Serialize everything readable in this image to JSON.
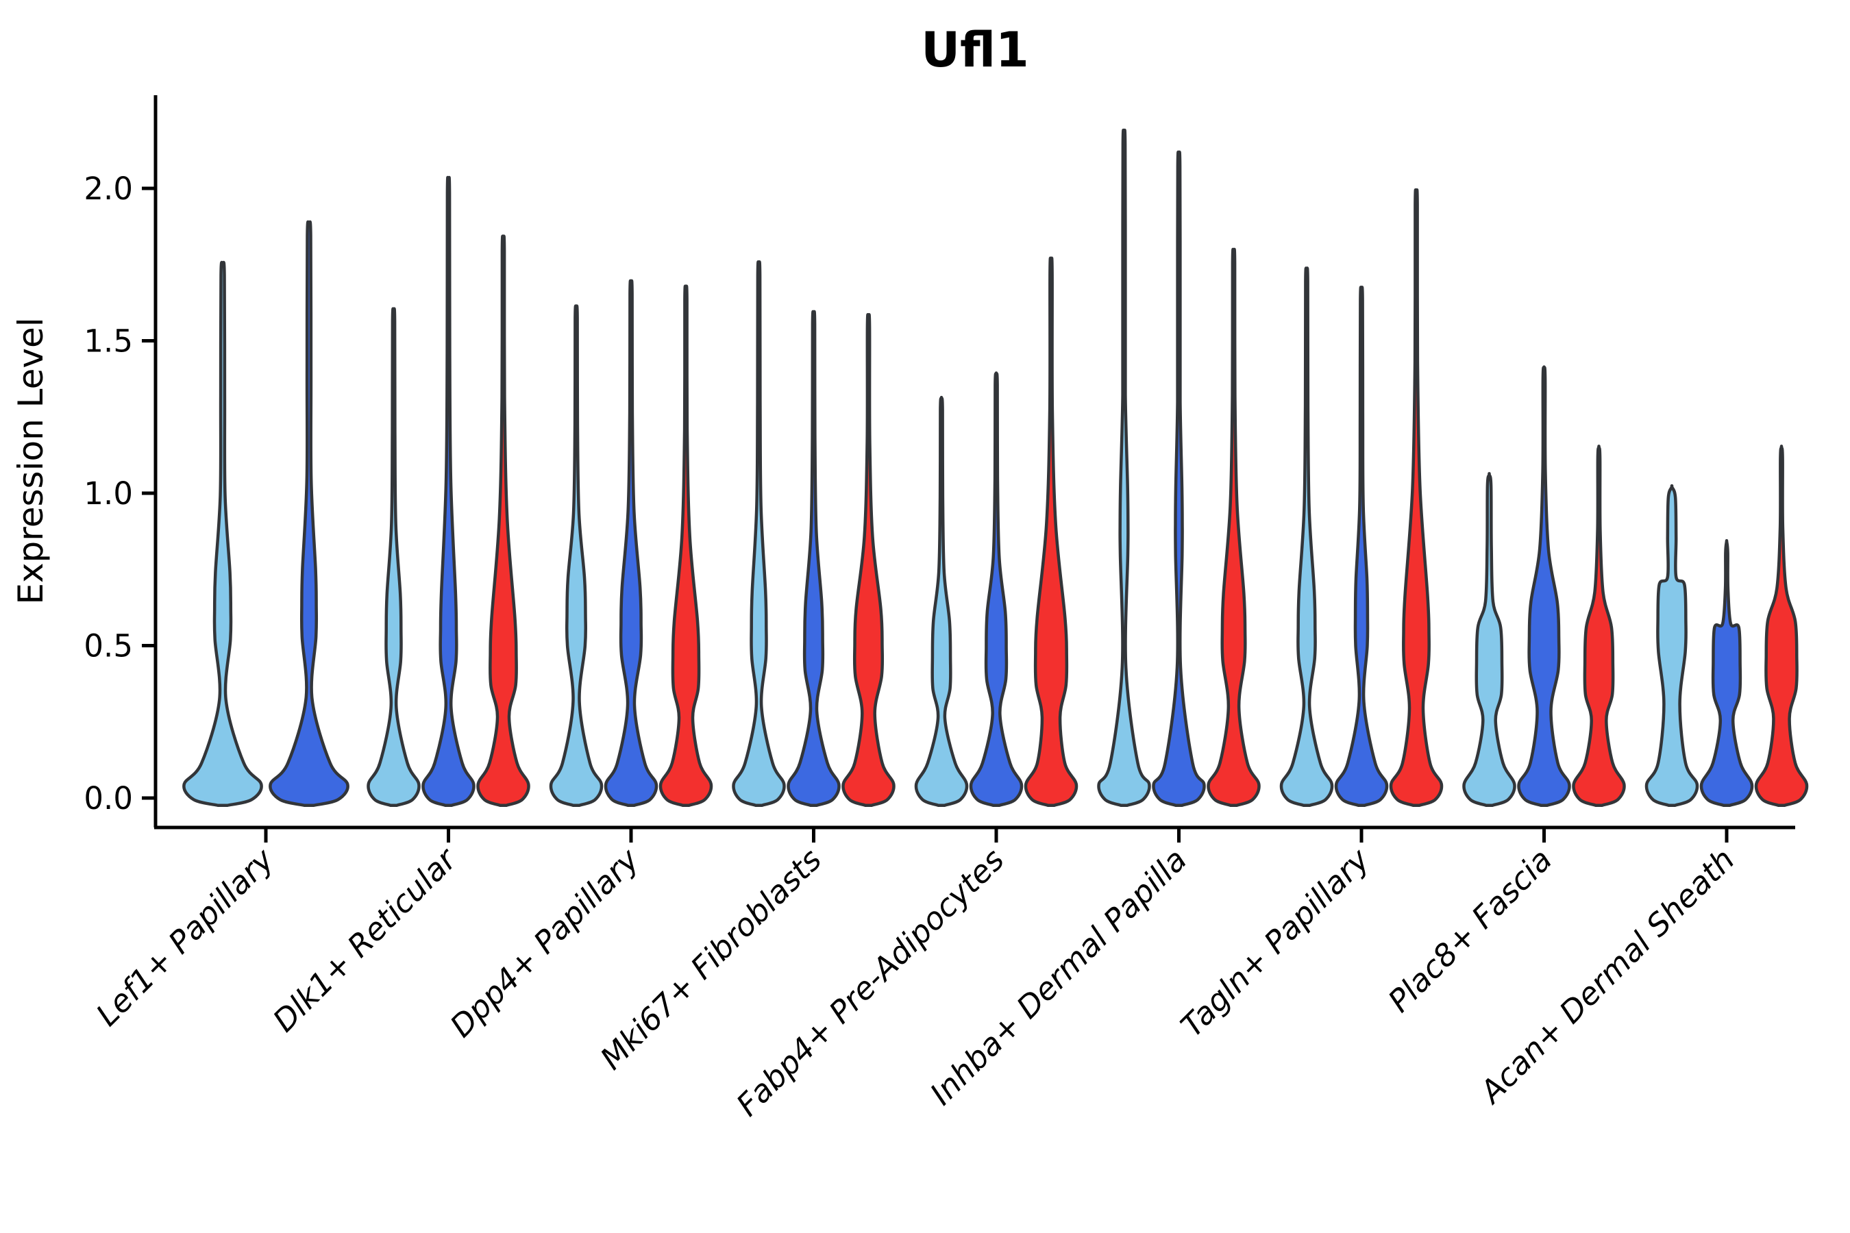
{
  "chart_data": {
    "type": "violin",
    "title": "Ufl1",
    "ylabel": "Expression Level",
    "xlabel": "",
    "grid": false,
    "legend_position": "none",
    "y_ticks": [
      "0.0",
      "0.5",
      "1.0",
      "1.5",
      "2.0"
    ],
    "y_tick_values": [
      0.0,
      0.5,
      1.0,
      1.5,
      2.0
    ],
    "ylim": [
      -0.1,
      2.31
    ],
    "palette": {
      "light_blue": "#85C8EA",
      "royal_blue": "#3C69E1",
      "red": "#F3302E",
      "outline": "#323539",
      "axis": "#000000"
    },
    "split_order": [
      "light_blue",
      "royal_blue",
      "red"
    ],
    "categories": [
      {
        "label": "Lef1+ Papillary",
        "violins": [
          {
            "color": "light_blue",
            "max": 1.75,
            "bulge_v": 0.62,
            "bulge_w": 0.2,
            "waist_w": 0.08
          },
          {
            "color": "royal_blue",
            "max": 1.88,
            "bulge_v": 0.63,
            "bulge_w": 0.18,
            "waist_w": 0.075
          }
        ]
      },
      {
        "label": "Dlk1+ Reticular",
        "violins": [
          {
            "color": "light_blue",
            "max": 1.6,
            "bulge_v": 0.55,
            "bulge_w": 0.28,
            "waist_w": 0.1
          },
          {
            "color": "royal_blue",
            "max": 2.02,
            "bulge_v": 0.55,
            "bulge_w": 0.3,
            "waist_w": 0.1
          },
          {
            "color": "red",
            "max": 1.83,
            "bulge_v": 0.47,
            "bulge_w": 0.49,
            "waist_w": 0.22
          }
        ]
      },
      {
        "label": "Dpp4+ Papillary",
        "violins": [
          {
            "color": "light_blue",
            "max": 1.61,
            "bulge_v": 0.6,
            "bulge_w": 0.35,
            "waist_w": 0.12
          },
          {
            "color": "royal_blue",
            "max": 1.69,
            "bulge_v": 0.57,
            "bulge_w": 0.38,
            "waist_w": 0.13
          },
          {
            "color": "red",
            "max": 1.67,
            "bulge_v": 0.46,
            "bulge_w": 0.49,
            "waist_w": 0.26
          }
        ]
      },
      {
        "label": "Mki67+ Fibroblasts",
        "violins": [
          {
            "color": "light_blue",
            "max": 1.75,
            "bulge_v": 0.56,
            "bulge_w": 0.28,
            "waist_w": 0.1
          },
          {
            "color": "royal_blue",
            "max": 1.59,
            "bulge_v": 0.52,
            "bulge_w": 0.34,
            "waist_w": 0.12
          },
          {
            "color": "red",
            "max": 1.58,
            "bulge_v": 0.5,
            "bulge_w": 0.52,
            "waist_w": 0.24
          }
        ]
      },
      {
        "label": "Fabp4+ Pre-Adipocytes",
        "violins": [
          {
            "color": "light_blue",
            "max": 1.31,
            "bulge_v": 0.46,
            "bulge_w": 0.34,
            "waist_w": 0.13
          },
          {
            "color": "royal_blue",
            "max": 1.39,
            "bulge_v": 0.49,
            "bulge_w": 0.38,
            "waist_w": 0.14
          },
          {
            "color": "red",
            "max": 1.76,
            "bulge_v": 0.47,
            "bulge_w": 0.59,
            "waist_w": 0.34
          }
        ]
      },
      {
        "label": "Inhba+ Dermal Papilla",
        "violins": [
          {
            "color": "light_blue",
            "max": 2.18,
            "bulge_v": 0.9,
            "bulge_w": 0.15,
            "waist_w": 0.07
          },
          {
            "color": "royal_blue",
            "max": 2.11,
            "bulge_v": 0.9,
            "bulge_w": 0.13,
            "waist_w": 0.065
          },
          {
            "color": "red",
            "max": 1.79,
            "bulge_v": 0.55,
            "bulge_w": 0.43,
            "waist_w": 0.2
          }
        ]
      },
      {
        "label": "Tagln+ Papillary",
        "violins": [
          {
            "color": "light_blue",
            "max": 1.73,
            "bulge_v": 0.56,
            "bulge_w": 0.32,
            "waist_w": 0.11
          },
          {
            "color": "royal_blue",
            "max": 1.67,
            "bulge_v": 0.6,
            "bulge_w": 0.23,
            "waist_w": 0.09
          },
          {
            "color": "red",
            "max": 1.98,
            "bulge_v": 0.54,
            "bulge_w": 0.48,
            "waist_w": 0.26
          }
        ]
      },
      {
        "label": "Plac8+ Fascia",
        "violins": [
          {
            "color": "light_blue",
            "max": 1.06,
            "bulge_v": 0.44,
            "bulge_w": 0.48,
            "waist_w": 0.24,
            "neck_w": 0.08
          },
          {
            "color": "royal_blue",
            "max": 1.41,
            "bulge_v": 0.52,
            "bulge_w": 0.56,
            "waist_w": 0.26
          },
          {
            "color": "red",
            "max": 1.15,
            "bulge_v": 0.44,
            "bulge_w": 0.53,
            "waist_w": 0.28
          }
        ]
      },
      {
        "label": "Acan+ Dermal Sheath",
        "violins": [
          {
            "color": "light_blue",
            "max": 1.02,
            "bulge_v": 0.58,
            "bulge_w": 0.53,
            "waist_w": 0.3,
            "neck_w": 0.16
          },
          {
            "color": "royal_blue",
            "max": 0.84,
            "bulge_v": 0.44,
            "bulge_w": 0.51,
            "waist_w": 0.24
          },
          {
            "color": "red",
            "max": 1.15,
            "bulge_v": 0.46,
            "bulge_w": 0.58,
            "waist_w": 0.3
          }
        ]
      }
    ]
  }
}
